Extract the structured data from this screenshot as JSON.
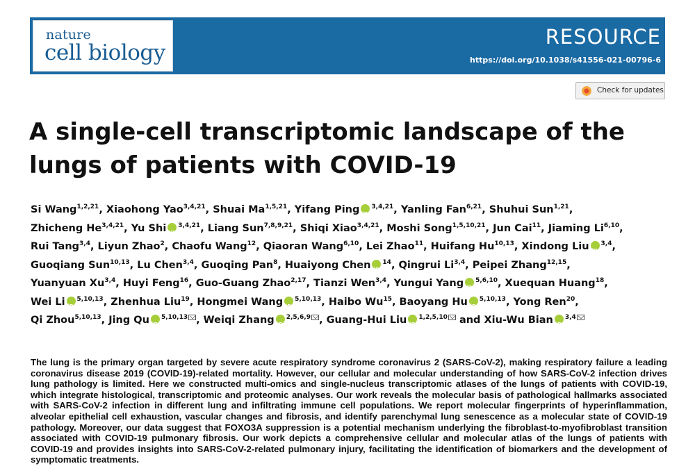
{
  "journal": {
    "name_top": "nature",
    "name_bottom": "cell biology",
    "article_type": "RESOURCE",
    "doi": "https://doi.org/10.1038/s41556-021-00796-6"
  },
  "check_updates": {
    "label": "Check for updates"
  },
  "article": {
    "title_line1": "A single-cell transcriptomic landscape of the",
    "title_line2": "lungs of patients with COVID-19"
  },
  "authors": [
    {
      "name": "Si Wang",
      "aff": "1,2,21"
    },
    {
      "name": "Xiaohong Yao",
      "aff": "3,4,21"
    },
    {
      "name": "Shuai Ma",
      "aff": "1,5,21"
    },
    {
      "name": "Yifang Ping",
      "aff": "3,4,21",
      "orcid": true
    },
    {
      "name": "Yanling Fan",
      "aff": "6,21"
    },
    {
      "name": "Shuhui Sun",
      "aff": "1,21"
    },
    {
      "name": "Zhicheng He",
      "aff": "3,4,21"
    },
    {
      "name": "Yu Shi",
      "aff": "3,4,21",
      "orcid": true
    },
    {
      "name": "Liang Sun",
      "aff": "7,8,9,21"
    },
    {
      "name": "Shiqi Xiao",
      "aff": "3,4,21"
    },
    {
      "name": "Moshi Song",
      "aff": "1,5,10,21"
    },
    {
      "name": "Jun Cai",
      "aff": "11"
    },
    {
      "name": "Jiaming Li",
      "aff": "6,10"
    },
    {
      "name": "Rui Tang",
      "aff": "3,4"
    },
    {
      "name": "Liyun Zhao",
      "aff": "2"
    },
    {
      "name": "Chaofu Wang",
      "aff": "12"
    },
    {
      "name": "Qiaoran Wang",
      "aff": "6,10"
    },
    {
      "name": "Lei Zhao",
      "aff": "11"
    },
    {
      "name": "Huifang Hu",
      "aff": "10,13"
    },
    {
      "name": "Xindong Liu",
      "aff": "3,4",
      "orcid": true
    },
    {
      "name": "Guoqiang Sun",
      "aff": "10,13"
    },
    {
      "name": "Lu Chen",
      "aff": "3,4"
    },
    {
      "name": "Guoqing Pan",
      "aff": "8"
    },
    {
      "name": "Huaiyong Chen",
      "aff": "14",
      "orcid": true
    },
    {
      "name": "Qingrui Li",
      "aff": "3,4"
    },
    {
      "name": "Peipei Zhang",
      "aff": "12,15"
    },
    {
      "name": "Yuanyuan Xu",
      "aff": "3,4"
    },
    {
      "name": "Huyi Feng",
      "aff": "16"
    },
    {
      "name": "Guo-Guang Zhao",
      "aff": "2,17"
    },
    {
      "name": "Tianzi Wen",
      "aff": "3,4"
    },
    {
      "name": "Yungui Yang",
      "aff": "5,6,10",
      "orcid": true
    },
    {
      "name": "Xuequan Huang",
      "aff": "18"
    },
    {
      "name": "Wei Li",
      "aff": "5,10,13",
      "orcid": true
    },
    {
      "name": "Zhenhua Liu",
      "aff": "19"
    },
    {
      "name": "Hongmei Wang",
      "aff": "5,10,13",
      "orcid": true
    },
    {
      "name": "Haibo Wu",
      "aff": "15"
    },
    {
      "name": "Baoyang Hu",
      "aff": "5,10,13",
      "orcid": true
    },
    {
      "name": "Yong Ren",
      "aff": "20"
    },
    {
      "name": "Qi Zhou",
      "aff": "5,10,13"
    },
    {
      "name": "Jing Qu",
      "aff": "5,10,13",
      "orcid": true,
      "mail": true
    },
    {
      "name": "Weiqi Zhang",
      "aff": "2,5,6,9",
      "orcid": true,
      "mail": true
    },
    {
      "name": "Guang-Hui Liu",
      "aff": "1,2,5,10",
      "orcid": true,
      "mail": true
    },
    {
      "name": "Xiu-Wu Bian",
      "aff": "3,4",
      "orcid": true,
      "mail": true
    }
  ],
  "author_lines": [
    [
      0,
      1,
      2,
      3,
      4,
      5
    ],
    [
      6,
      7,
      8,
      9,
      10,
      11,
      12
    ],
    [
      13,
      14,
      15,
      16,
      17,
      18,
      19
    ],
    [
      20,
      21,
      22,
      23,
      24,
      25
    ],
    [
      26,
      27,
      28,
      29,
      30,
      31
    ],
    [
      32,
      33,
      34,
      35,
      36,
      37
    ],
    [
      38,
      39,
      40,
      41,
      42
    ]
  ],
  "and_word": "and",
  "abstract": "The lung is the primary organ targeted by severe acute respiratory syndrome coronavirus 2 (SARS-CoV-2), making respiratory failure a leading coronavirus disease 2019 (COVID-19)-related mortality. However, our cellular and molecular understanding of how SARS-CoV-2 infection drives lung pathology is limited. Here we constructed multi-omics and single-nucleus transcriptomic atlases of the lungs of patients with COVID-19, which integrate histological, transcriptomic and proteomic analyses. Our work reveals the molecular basis of pathological hallmarks associated with SARS-CoV-2 infection in different lung and infiltrating immune cell populations. We report molecular fingerprints of hyperinflammation, alveolar epithelial cell exhaustion, vascular changes and fibrosis, and identify parenchymal lung senescence as a molecular state of COVID-19 pathology. Moreover, our data suggest that FOXO3A suppression is a potential mechanism underlying the fibroblast-to-myofibroblast transition associated with COVID-19 pulmonary fibrosis. Our work depicts a comprehensive cellular and molecular atlas of the lungs of patients with COVID-19 and provides insights into SARS-CoV-2-related pulmonary injury, facilitating the identification of biomarkers and the development of symptomatic treatments."
}
